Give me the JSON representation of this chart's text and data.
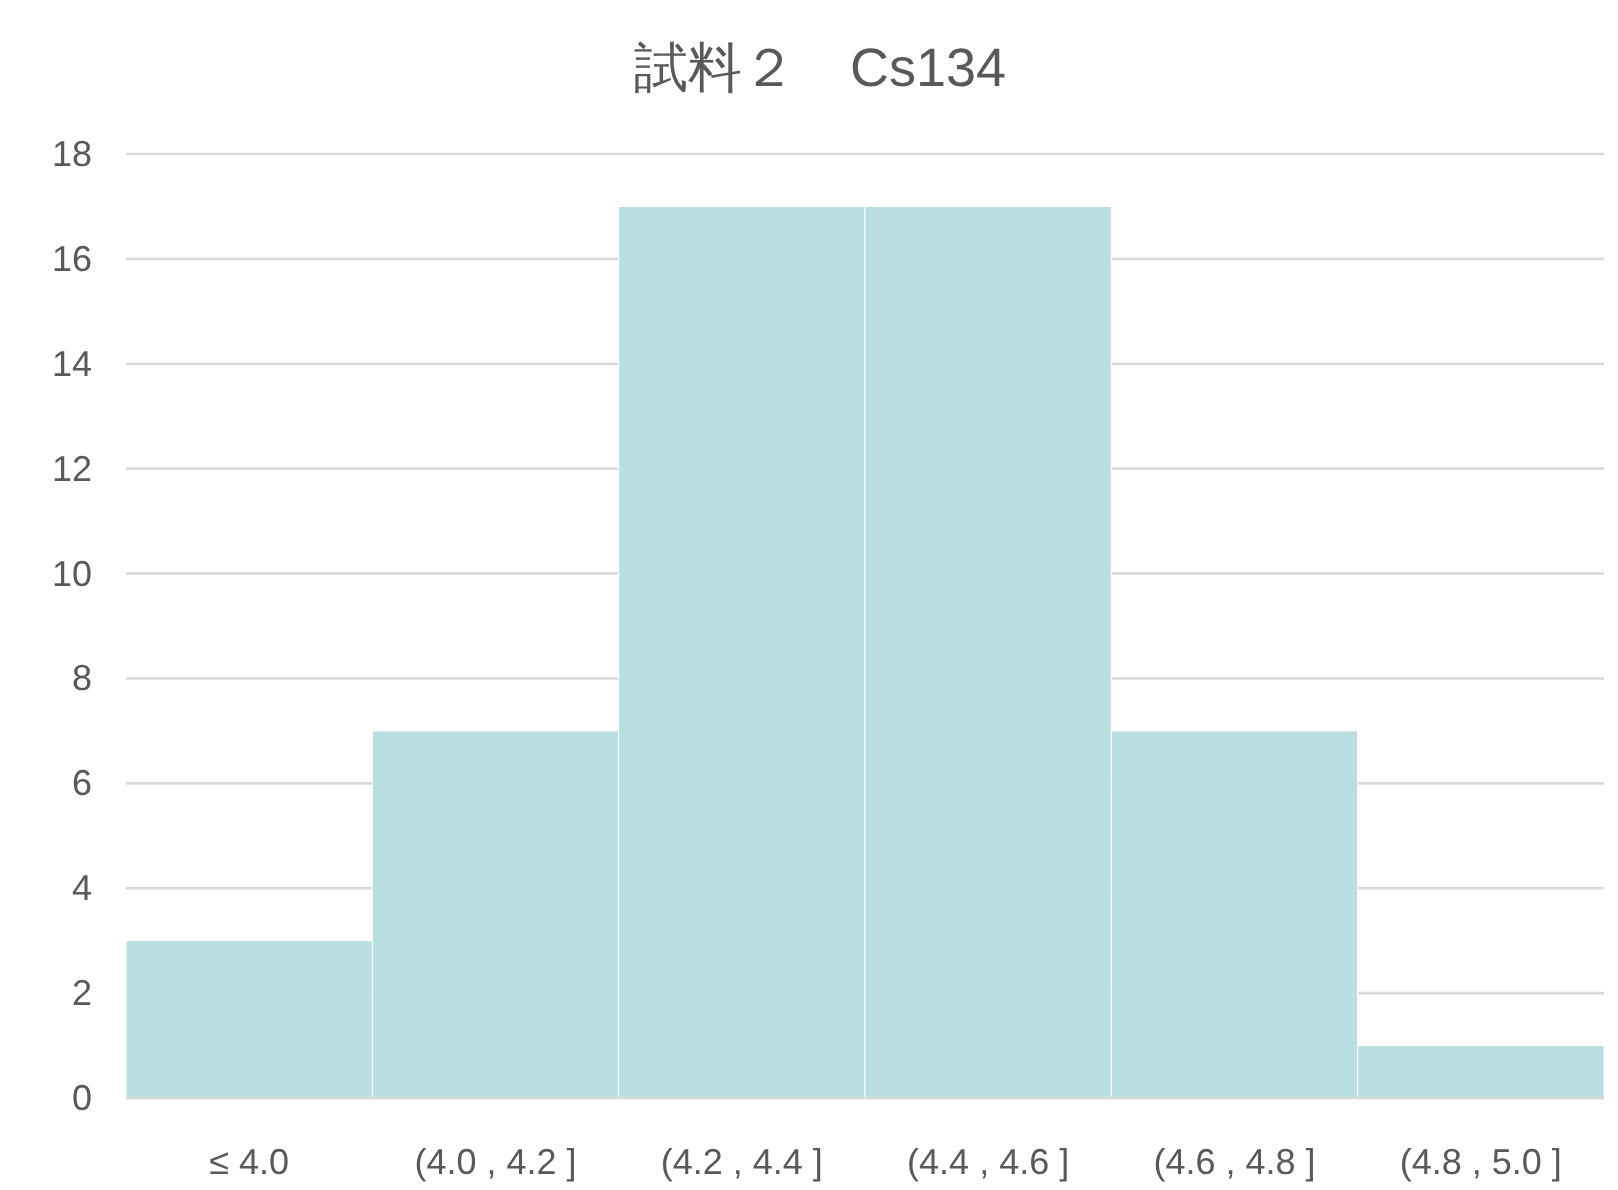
{
  "chart_data": {
    "type": "bar",
    "title": "試料２　Cs134",
    "categories": [
      "≤ 4.0",
      "(4.0 , 4.2 ]",
      "(4.2 , 4.4 ]",
      "(4.4 , 4.6 ]",
      "(4.6 , 4.8 ]",
      "(4.8 , 5.0 ]"
    ],
    "values": [
      3,
      7,
      17,
      17,
      7,
      1
    ],
    "color": "#b9dfe2",
    "ylim": [
      0,
      18
    ],
    "yticks": [
      0,
      2,
      4,
      6,
      8,
      10,
      12,
      14,
      16,
      18
    ],
    "grid": "y"
  }
}
